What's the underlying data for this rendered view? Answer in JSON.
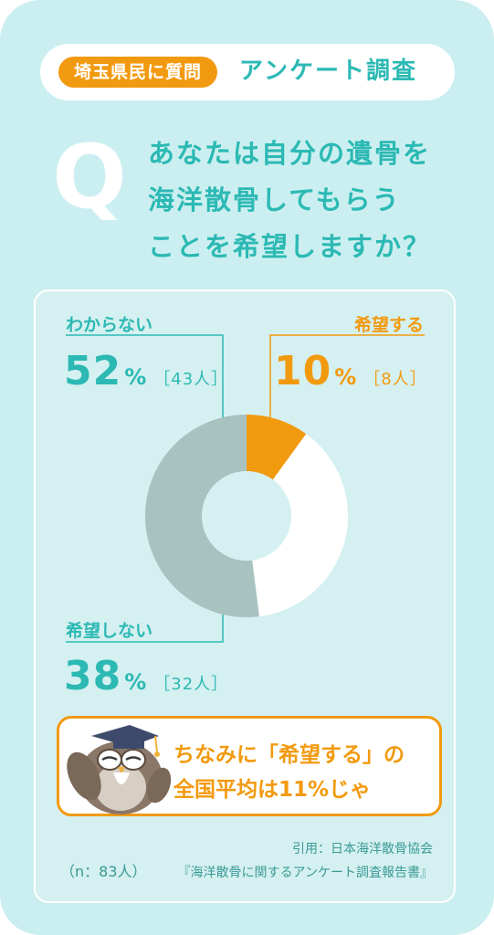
{
  "header": {
    "tag": "埼玉県民に質問",
    "title": "アンケート調査"
  },
  "question": {
    "mark": "Q",
    "lines": [
      "あなたは自分の遺骨を",
      "海洋散骨してもらう",
      "ことを希望しますか？"
    ]
  },
  "colors": {
    "teal": "#2cb9b4",
    "orange": "#f29a0f",
    "gray": "#a8c2c0",
    "white": "#ffffff"
  },
  "chart_data": {
    "type": "pie",
    "style": "donut",
    "start": "top",
    "direction": "clockwise",
    "slices": [
      {
        "label": "希望する",
        "value": 10,
        "pct_text": "10",
        "unit": "%",
        "count": "［8人］",
        "color": "#f29a0f"
      },
      {
        "label": "希望しない",
        "value": 38,
        "pct_text": "38",
        "unit": "%",
        "count": "［32人］",
        "color": "#ffffff"
      },
      {
        "label": "わからない",
        "value": 52,
        "pct_text": "52",
        "unit": "%",
        "count": "［43人］",
        "color": "#a8c2c0"
      }
    ]
  },
  "note": {
    "line1": "ちなみに「希望する」の",
    "line2": "全国平均は11%じゃ",
    "mascot_icon": "owl-graduate-icon"
  },
  "footer": {
    "sample": "（n：83人）",
    "source_line1": "引用：日本海洋散骨協会",
    "source_line2": "『海洋散骨に関するアンケート調査報告書』"
  }
}
